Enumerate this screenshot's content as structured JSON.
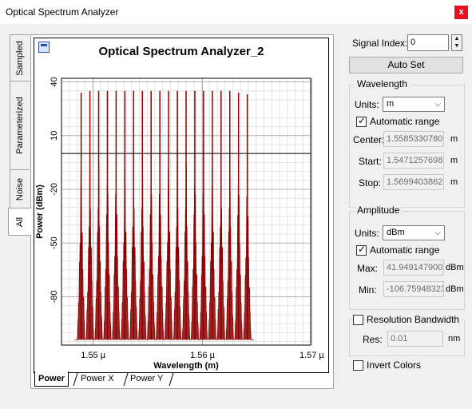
{
  "window": {
    "title": "Optical Spectrum Analyzer",
    "close_label": "x"
  },
  "side_tabs": [
    {
      "label": "Sampled"
    },
    {
      "label": "Parameterized"
    },
    {
      "label": "Noise"
    },
    {
      "label": "All"
    }
  ],
  "bottom_tabs": [
    {
      "label": "Power",
      "active": true
    },
    {
      "label": "Power X",
      "active": false
    },
    {
      "label": "Power Y",
      "active": false
    }
  ],
  "controls": {
    "signal_index_label": "Signal Index:",
    "signal_index_value": "0",
    "auto_set_label": "Auto Set",
    "wavelength": {
      "title": "Wavelength",
      "units_label": "Units:",
      "units_value": "m",
      "automatic_range_label": "Automatic range",
      "automatic_range_checked": true,
      "center_label": "Center:",
      "center_value": "1.5585330780",
      "start_label": "Start:",
      "start_value": "1.5471257698",
      "stop_label": "Stop:",
      "stop_value": "1.5699403862",
      "unit": "m"
    },
    "amplitude": {
      "title": "Amplitude",
      "units_label": "Units:",
      "units_value": "dBm",
      "automatic_range_label": "Automatic range",
      "automatic_range_checked": true,
      "max_label": "Max:",
      "max_value": "41.949147900",
      "min_label": "Min:",
      "min_value": "-106.75948323",
      "unit": "dBm"
    },
    "resolution": {
      "label": "Resolution Bandwidth",
      "checked": false,
      "res_label": "Res:",
      "res_value": "0.01",
      "unit": "nm"
    },
    "invert_colors": {
      "label": "Invert Colors",
      "checked": false
    }
  },
  "chart_data": {
    "type": "line",
    "title": "Optical Spectrum Analyzer_2",
    "xlabel": "Wavelength (m)",
    "ylabel": "Power (dBm)",
    "x_ticks": [
      "1.55 µ",
      "1.56 µ",
      "1.57 µ"
    ],
    "x_tick_values": [
      1.55,
      1.56,
      1.57
    ],
    "y_ticks": [
      "40",
      "10",
      "-20",
      "-50",
      "-80"
    ],
    "y_tick_values": [
      40,
      10,
      -20,
      -50,
      -80
    ],
    "xlim": [
      1.5471,
      1.5699
    ],
    "ylim": [
      -107,
      42
    ],
    "grid": true,
    "line_color": "#8b0000",
    "marker_level": 0,
    "noise_floor": -104,
    "peaks": [
      {
        "x": 1.5489,
        "y": 34
      },
      {
        "x": 1.5497,
        "y": 35
      },
      {
        "x": 1.5505,
        "y": 35
      },
      {
        "x": 1.5513,
        "y": 35
      },
      {
        "x": 1.5521,
        "y": 35
      },
      {
        "x": 1.5529,
        "y": 35
      },
      {
        "x": 1.5537,
        "y": 35
      },
      {
        "x": 1.5545,
        "y": 35
      },
      {
        "x": 1.5553,
        "y": 35
      },
      {
        "x": 1.5561,
        "y": 35
      },
      {
        "x": 1.5569,
        "y": 35
      },
      {
        "x": 1.5577,
        "y": 35
      },
      {
        "x": 1.5585,
        "y": 35
      },
      {
        "x": 1.5593,
        "y": 35
      },
      {
        "x": 1.5601,
        "y": 35
      },
      {
        "x": 1.5609,
        "y": 35
      },
      {
        "x": 1.5617,
        "y": 35
      },
      {
        "x": 1.5625,
        "y": 35
      },
      {
        "x": 1.5633,
        "y": 34
      },
      {
        "x": 1.5641,
        "y": 33
      }
    ]
  }
}
